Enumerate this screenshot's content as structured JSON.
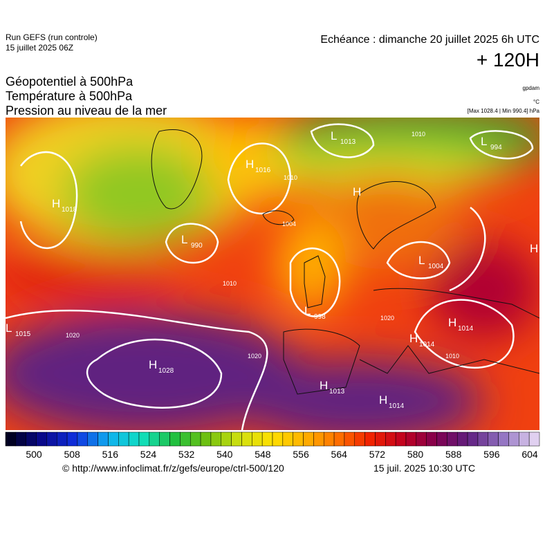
{
  "header": {
    "model": "Run GEFS (run controle)",
    "run_date": "15 juillet 2025 06Z",
    "valid": "Echéance : dimanche 20 juillet 2025 6h UTC",
    "lead": "+ 120H"
  },
  "fields": [
    "Géopotentiel à 500hPa",
    "Température à 500hPa",
    "Pression au niveau de la mer"
  ],
  "units": [
    "gpdam",
    "°C",
    "[Max 1028.4 | Min 990.4] hPa"
  ],
  "pressure_centers": [
    {
      "type": "H",
      "value": 1018
    },
    {
      "type": "H",
      "value": 1016
    },
    {
      "type": "L",
      "value": 1013
    },
    {
      "type": "L",
      "value": 994
    },
    {
      "type": "H"
    },
    {
      "type": "L",
      "value": 990
    },
    {
      "type": "L",
      "value": 998
    },
    {
      "type": "L",
      "value": 1004
    },
    {
      "type": "H",
      "value": 1014
    },
    {
      "type": "H",
      "value": 1014
    },
    {
      "type": "L",
      "value": 1015
    },
    {
      "type": "H",
      "value": 1028
    },
    {
      "type": "H",
      "value": 1013
    },
    {
      "type": "H",
      "value": 1014
    },
    {
      "type": "H"
    }
  ],
  "contour_labels": [
    1010,
    1004,
    1010,
    1020,
    1020,
    1010,
    1010,
    1020
  ],
  "colorbar": {
    "ticks": [
      500,
      508,
      516,
      524,
      532,
      540,
      548,
      556,
      564,
      572,
      580,
      588,
      596,
      604
    ],
    "colors": [
      "#000022",
      "#0a0a90",
      "#1030e0",
      "#10b0f0",
      "#10e0c0",
      "#20c040",
      "#70c010",
      "#d0e010",
      "#ffe000",
      "#ffb000",
      "#ff7000",
      "#f02000",
      "#c00020",
      "#800050",
      "#602080",
      "#9070c0",
      "#e0d0f0"
    ]
  },
  "footer": {
    "url": "© http://www.infoclimat.fr/z/gefs/europe/ctrl-500/120",
    "time": "15 juil. 2025 10:30 UTC"
  }
}
